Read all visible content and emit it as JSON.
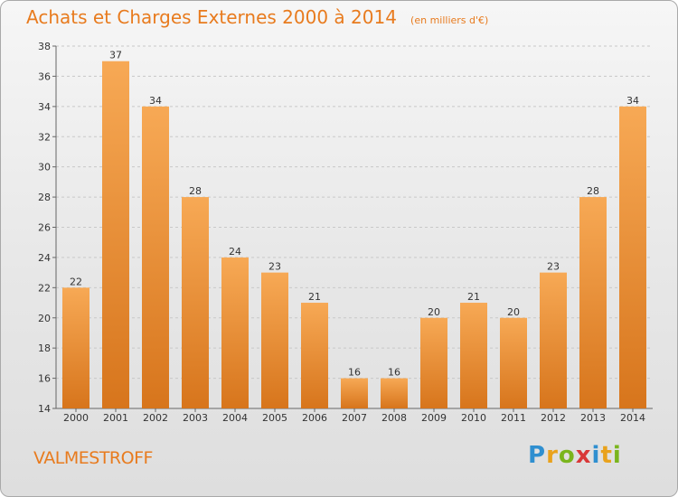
{
  "title": "Achats et Charges Externes 2000 à 2014",
  "unit": "(en milliers d'€)",
  "commune": "VALMESTROFF",
  "logo": {
    "letters": [
      "P",
      "r",
      "o",
      "x",
      "i",
      "t",
      "i"
    ],
    "colors": [
      "#2f8fd0",
      "#e9a21c",
      "#7ab51d",
      "#d93838",
      "#2f8fd0",
      "#e9a21c",
      "#7ab51d"
    ]
  },
  "colors": {
    "bar_light": "#f7a955",
    "bar_dark": "#d7751c",
    "title": "#e87b1e"
  },
  "chart_data": {
    "type": "bar",
    "categories": [
      "2000",
      "2001",
      "2002",
      "2003",
      "2004",
      "2005",
      "2006",
      "2007",
      "2008",
      "2009",
      "2010",
      "2011",
      "2012",
      "2013",
      "2014"
    ],
    "values": [
      22,
      37,
      34,
      28,
      24,
      23,
      21,
      16,
      16,
      20,
      21,
      20,
      23,
      28,
      34
    ],
    "ylim": [
      14,
      38
    ],
    "yticks": [
      14,
      16,
      18,
      20,
      22,
      24,
      26,
      28,
      30,
      32,
      34,
      36,
      38
    ],
    "grid": "horizontal dashed",
    "data_labels": true
  }
}
